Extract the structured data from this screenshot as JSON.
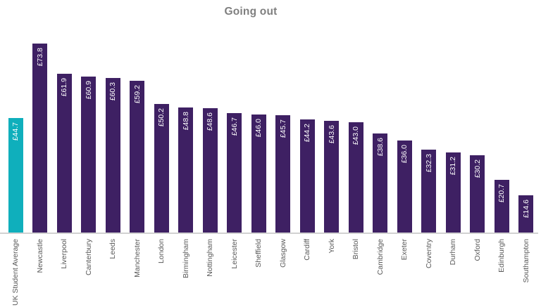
{
  "title": "Going out",
  "colors": {
    "average_bar": "#0FAFBC",
    "city_bar": "#3E2063",
    "title_text": "#7F7F7F",
    "axis_label_text": "#595959",
    "axis_line": "#D2D2D2",
    "value_label_text": "#FFFFFF"
  },
  "chart_data": {
    "type": "bar",
    "title": "Going out",
    "categories": [
      "UK Student Average",
      "Newcastle",
      "Liverpool",
      "Canterbury",
      "Leeds",
      "Manchester",
      "London",
      "Birmingham",
      "Nottingham",
      "Leicester",
      "Sheffield",
      "Glasgow",
      "Cardiff",
      "York",
      "Bristol",
      "Cambridge",
      "Exeter",
      "Coventry",
      "Durham",
      "Oxford",
      "Edinburgh",
      "Southampton"
    ],
    "values": [
      44.7,
      73.8,
      61.9,
      60.9,
      60.3,
      59.2,
      50.2,
      48.8,
      48.6,
      46.7,
      46.0,
      45.7,
      44.2,
      43.6,
      43.0,
      38.6,
      36.0,
      32.3,
      31.2,
      30.2,
      20.7,
      14.6
    ],
    "value_labels": [
      "£44.7",
      "£73.8",
      "£61.9",
      "£60.9",
      "£60.3",
      "£59.2",
      "£50.2",
      "£48.8",
      "£48.6",
      "£46.7",
      "£46.0",
      "£45.7",
      "£44.2",
      "£43.6",
      "£43.0",
      "£38.6",
      "£36.0",
      "£32.3",
      "£31.2",
      "£30.2",
      "£20.7",
      "£14.6"
    ],
    "currency": "£",
    "highlight_index": 0,
    "highlight_label": "UK Student Average",
    "xlabel": "",
    "ylabel": "",
    "ylim": [
      0,
      80
    ],
    "grid": false,
    "legend": false,
    "value_label_position": "inside-end",
    "text_rotation": "bottom-to-top",
    "orientation": "vertical"
  }
}
